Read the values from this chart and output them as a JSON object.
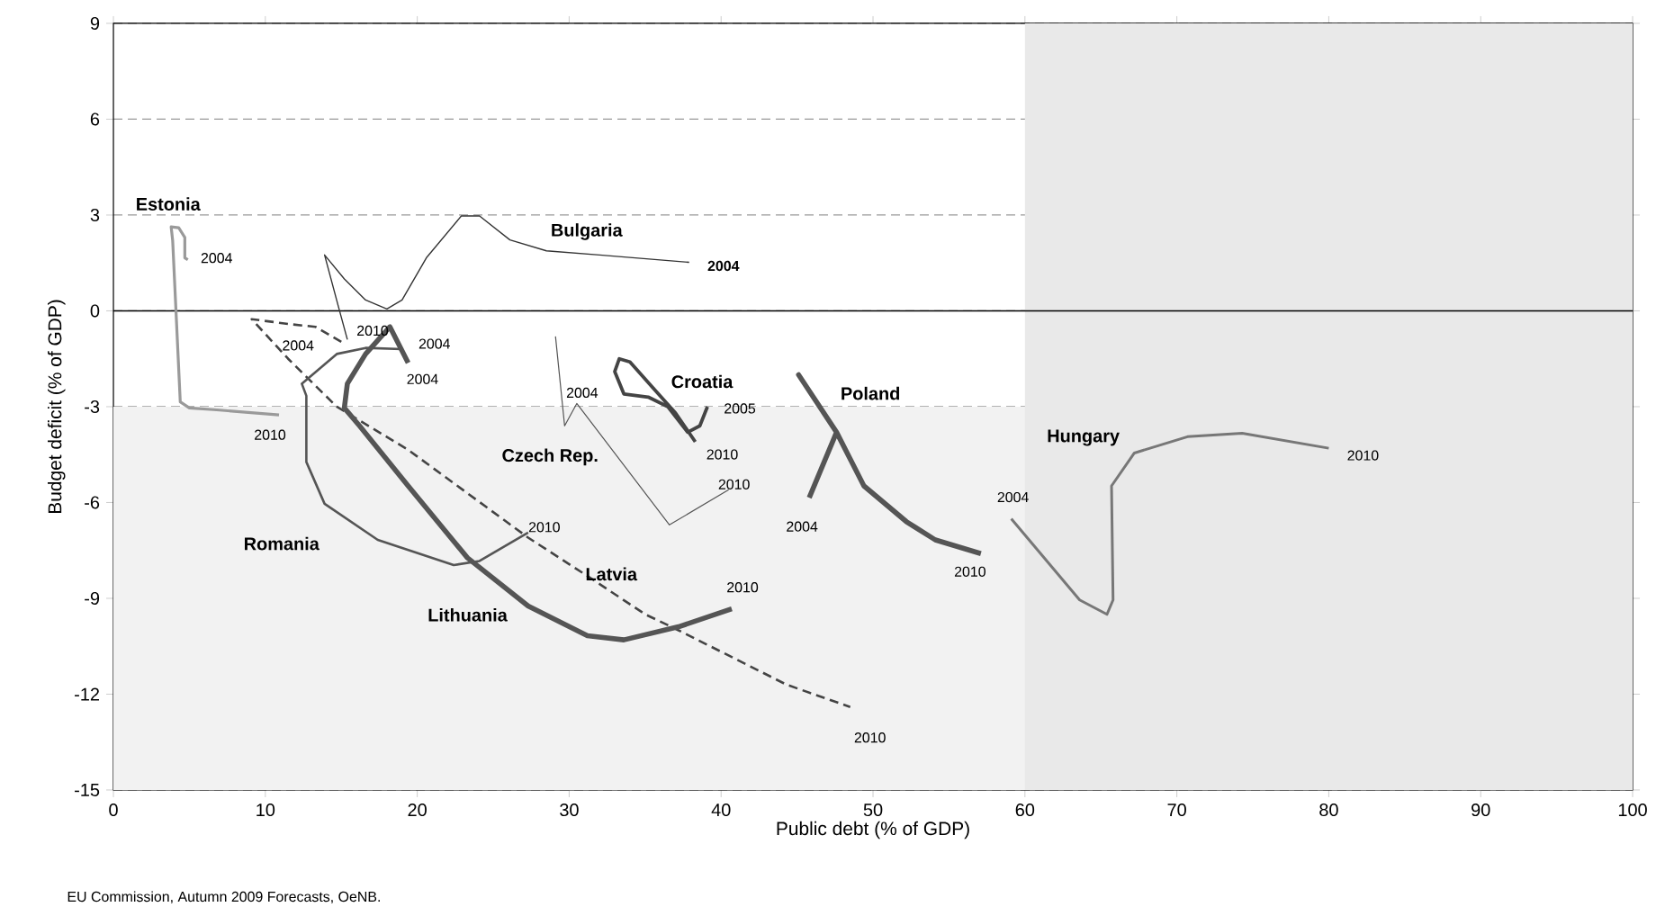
{
  "chart_data": {
    "type": "line",
    "xlabel": "Public debt (% of GDP)",
    "ylabel": "Budget deficit (% of GDP)",
    "xlim": [
      0,
      100
    ],
    "ylim": [
      -15,
      9
    ],
    "xticks": [
      0,
      10,
      20,
      30,
      40,
      50,
      60,
      70,
      80,
      90,
      100
    ],
    "yticks": [
      -15,
      -12,
      -9,
      -6,
      -3,
      0,
      3,
      6,
      9
    ],
    "grid": "y",
    "marker": "none",
    "bands": [
      {
        "axis": "y",
        "from": -15,
        "to": -3,
        "color": "#f2f2f2"
      },
      {
        "axis": "x",
        "from": 60,
        "to": 100,
        "color": "#e9e9e9"
      }
    ],
    "ref_lines": [
      {
        "axis": "y",
        "value": 0,
        "color": "#000000",
        "line_style": "solid"
      }
    ],
    "series": [
      {
        "name": "Estonia",
        "color": "#9a9a9a",
        "x": [
          4.9,
          4.7,
          4.7,
          4.3,
          3.8,
          3.9,
          4.4,
          5.0,
          6.8,
          10.9
        ],
        "values": [
          1.6,
          1.66,
          2.3,
          2.6,
          2.63,
          2.2,
          -2.85,
          -3.04,
          -3.1,
          -3.26
        ]
      },
      {
        "name": "Bulgaria",
        "color": "#333333",
        "x": [
          37.9,
          32.0,
          28.5,
          26.1,
          24.1,
          22.9,
          20.6,
          19.0,
          18.0,
          16.6,
          15.2,
          13.9,
          14.8,
          15.4
        ],
        "values": [
          1.52,
          1.75,
          1.88,
          2.22,
          2.97,
          2.97,
          1.66,
          0.34,
          0.06,
          0.34,
          1.0,
          1.75,
          0.15,
          -0.9
        ]
      },
      {
        "name": "Latvia",
        "color": "#444444",
        "line_style": "dashed",
        "x": [
          15.0,
          13.3,
          11.5,
          9.1,
          11.5,
          14.7,
          19.4,
          27.3,
          31.2,
          35.0,
          37.2,
          44.3,
          48.5
        ],
        "values": [
          -0.97,
          -0.5,
          -0.41,
          -0.26,
          -1.5,
          -3.0,
          -4.35,
          -7.1,
          -8.3,
          -9.5,
          -10.0,
          -11.7,
          -12.4
        ]
      },
      {
        "name": "Lithuania",
        "color": "#555555",
        "x": [
          19.4,
          18.2,
          16.6,
          15.4,
          15.2,
          16.2,
          19.4,
          23.3,
          27.3,
          31.2,
          33.6,
          37.2,
          40.7
        ],
        "values": [
          -1.63,
          -0.5,
          -1.35,
          -2.28,
          -3.04,
          -3.6,
          -5.48,
          -7.73,
          -9.24,
          -10.17,
          -10.3,
          -9.89,
          -9.33
        ]
      },
      {
        "name": "Romania",
        "color": "#555555",
        "x": [
          19.0,
          16.6,
          14.7,
          12.4,
          12.7,
          12.7,
          13.9,
          17.4,
          22.4,
          24.1,
          27.3
        ],
        "values": [
          -1.2,
          -1.16,
          -1.35,
          -2.28,
          -2.66,
          -4.73,
          -6.04,
          -7.17,
          -7.96,
          -7.83,
          -6.94
        ]
      },
      {
        "name": "Croatia",
        "color": "#444444",
        "x": [
          39.1,
          38.6,
          37.8,
          36.5,
          35.2,
          33.6,
          33.0,
          33.3,
          34.0,
          35.5,
          37.0,
          38.3
        ],
        "values": [
          -3.0,
          -3.6,
          -3.8,
          -3.0,
          -2.7,
          -2.6,
          -1.9,
          -1.5,
          -1.6,
          -2.4,
          -3.2,
          -4.1
        ]
      },
      {
        "name": "Czech Rep.",
        "color": "#555555",
        "x": [
          29.1,
          29.7,
          30.5,
          36.6,
          40.5
        ],
        "values": [
          -0.8,
          -3.6,
          -2.9,
          -6.7,
          -5.6
        ]
      },
      {
        "name": "Poland",
        "color": "#555555",
        "x": [
          45.8,
          47.6,
          45.1,
          47.6,
          49.4,
          52.2,
          54.1,
          57.1
        ],
        "values": [
          -5.85,
          -3.8,
          -2.0,
          -3.8,
          -5.48,
          -6.6,
          -7.17,
          -7.6
        ]
      },
      {
        "name": "Hungary",
        "color": "#777777",
        "x": [
          59.1,
          63.6,
          65.4,
          65.8,
          65.7,
          67.2,
          70.7,
          74.3,
          80.0
        ],
        "values": [
          -6.51,
          -9.05,
          -9.5,
          -9.05,
          -5.48,
          -4.45,
          -3.94,
          -3.83,
          -4.3
        ]
      }
    ],
    "annotations": [
      {
        "text": "2004",
        "x": 37.9,
        "y": 1.52
      },
      {
        "text": "2004",
        "x": 4.9,
        "y": 1.6
      },
      {
        "text": "2010",
        "x": 10.9,
        "y": -3.26
      },
      {
        "text": "2010",
        "x": 15.4,
        "y": -0.9
      },
      {
        "text": "2004",
        "x": 15.0,
        "y": -0.97
      },
      {
        "text": "2004",
        "x": 19.4,
        "y": -1.63
      },
      {
        "text": "2004",
        "x": 19.0,
        "y": -1.2
      },
      {
        "text": "2004",
        "x": 30.5,
        "y": -2.9
      },
      {
        "text": "2005",
        "x": 39.1,
        "y": -3.0
      },
      {
        "text": "2010",
        "x": 38.3,
        "y": -4.1
      },
      {
        "text": "2010",
        "x": 40.5,
        "y": -5.6
      },
      {
        "text": "2004",
        "x": 45.8,
        "y": -5.85
      },
      {
        "text": "2010",
        "x": 27.3,
        "y": -6.94
      },
      {
        "text": "2010",
        "x": 57.1,
        "y": -7.6
      },
      {
        "text": "2010",
        "x": 40.7,
        "y": -9.33
      },
      {
        "text": "2010",
        "x": 48.5,
        "y": -12.4
      },
      {
        "text": "2004",
        "x": 59.1,
        "y": -6.51
      },
      {
        "text": "2010",
        "x": 80.0,
        "y": -4.3
      },
      "EU Commission, Autumn 2009 Forecasts, OeNB."
    ]
  }
}
